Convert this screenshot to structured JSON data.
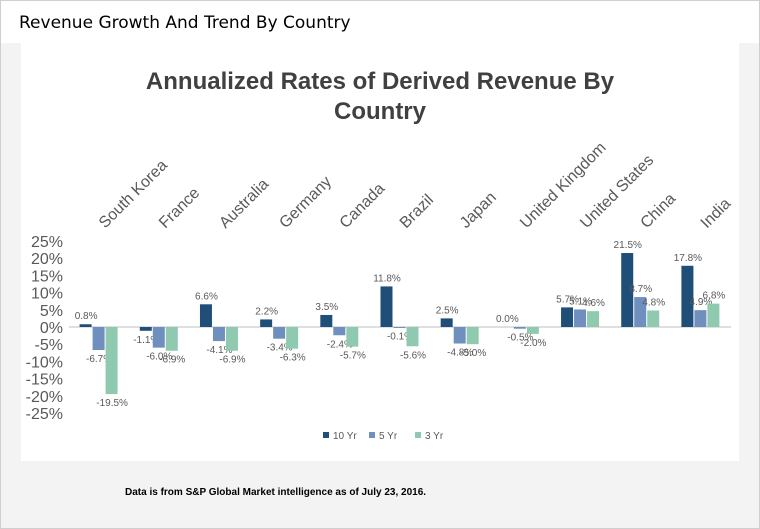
{
  "header": {
    "title": "Revenue Growth And Trend By Country"
  },
  "footnote": "Data is from S&P Global Market intelligence as of July 23, 2016.",
  "colors": {
    "10 Yr": "#1f4e79",
    "5 Yr": "#6f8fbe",
    "3 Yr": "#8fcab0"
  },
  "chart_data": {
    "type": "bar",
    "title": "Annualized Rates of Derived Revenue By Country",
    "xlabel": "",
    "ylabel": "",
    "ylim": [
      -25,
      25
    ],
    "y_ticks": [
      "25%",
      "20%",
      "15%",
      "10%",
      "5%",
      "0%",
      "-5%",
      "-10%",
      "-15%",
      "-20%",
      "-25%"
    ],
    "categories": [
      "South Korea",
      "France",
      "Australia",
      "Germany",
      "Canada",
      "Brazil",
      "Japan",
      "United Kingdom",
      "United States",
      "China",
      "India"
    ],
    "series": [
      {
        "name": "10 Yr",
        "values": [
          0.8,
          -1.1,
          6.6,
          2.2,
          3.5,
          11.8,
          2.5,
          0.0,
          5.7,
          21.5,
          17.8
        ],
        "labels": [
          "0.8%",
          "-1.1%",
          "6.6%",
          "2.2%",
          "3.5%",
          "11.8%",
          "2.5%",
          "0.0%",
          "5.7%",
          "21.5%",
          "17.8%"
        ]
      },
      {
        "name": "5 Yr",
        "values": [
          -6.7,
          -6.0,
          -4.1,
          -3.4,
          -2.4,
          -0.1,
          -4.8,
          -0.5,
          5.1,
          8.7,
          4.9
        ],
        "labels": [
          "-6.7%",
          "-6.0%",
          "-4.1%",
          "-3.4%",
          "-2.4%",
          "-0.1%",
          "-4.8%",
          "-0.5%",
          "5.1%",
          "8.7%",
          "4.9%"
        ]
      },
      {
        "name": "3 Yr",
        "values": [
          -19.5,
          -6.9,
          -6.9,
          -6.3,
          -5.7,
          -5.6,
          -5.0,
          -2.0,
          4.6,
          4.8,
          6.8
        ],
        "labels": [
          "-19.5%",
          "-6.9%",
          "-6.9%",
          "-6.3%",
          "-5.7%",
          "-5.6%",
          "-5.0%",
          "-2.0%",
          "4.6%",
          "4.8%",
          "6.8%"
        ]
      }
    ],
    "grid": false,
    "legend_position": "bottom"
  }
}
